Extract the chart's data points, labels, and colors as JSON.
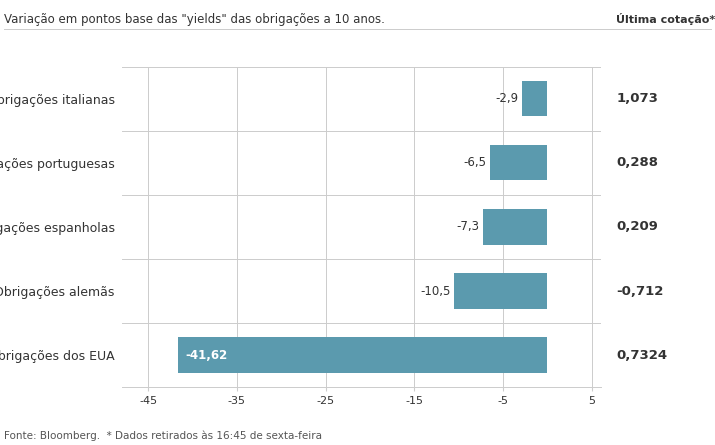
{
  "subtitle": "Variação em pontos base das \"yields\" das obrigações a 10 anos.",
  "categories": [
    "Obrigações dos EUA",
    "Obrigações alemãs",
    "Obrigações espanholas",
    "Obrigações portuguesas",
    "Obrigações italianas"
  ],
  "values": [
    -41.62,
    -10.5,
    -7.3,
    -6.5,
    -2.9
  ],
  "last_quotes": [
    "0,7324",
    "-0,712",
    "0,209",
    "0,288",
    "1,073"
  ],
  "bar_color": "#5b9aae",
  "bar_label_color_inside": "#ffffff",
  "bar_label_color_outside": "#333333",
  "text_color": "#333333",
  "background_color": "#ffffff",
  "grid_color": "#cccccc",
  "xlim": [
    -48,
    6
  ],
  "xticks": [
    -45,
    -35,
    -25,
    -15,
    -5,
    5
  ],
  "footer": "Fonte: Bloomberg.  * Dados retirados às 16:45 de sexta-feira",
  "ultima_cotacao_label": "Última cotação*"
}
